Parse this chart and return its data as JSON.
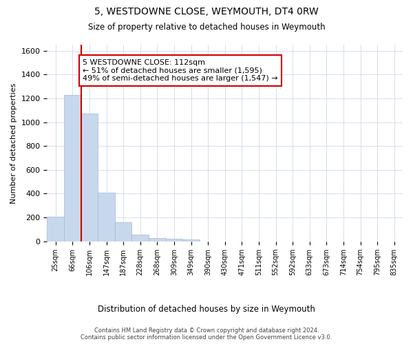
{
  "title": "5, WESTDOWNE CLOSE, WEYMOUTH, DT4 0RW",
  "subtitle": "Size of property relative to detached houses in Weymouth",
  "xlabel": "Distribution of detached houses by size in Weymouth",
  "ylabel": "Number of detached properties",
  "bar_color": "#c8d8ec",
  "bar_edge_color": "#a0b8d8",
  "grid_color": "#d0d8e8",
  "background_color": "#ffffff",
  "categories": [
    "25sqm",
    "66sqm",
    "106sqm",
    "147sqm",
    "187sqm",
    "228sqm",
    "268sqm",
    "309sqm",
    "349sqm",
    "390sqm",
    "430sqm",
    "471sqm",
    "511sqm",
    "552sqm",
    "592sqm",
    "633sqm",
    "673sqm",
    "714sqm",
    "754sqm",
    "795sqm",
    "835sqm"
  ],
  "values": [
    205,
    1230,
    1075,
    410,
    160,
    55,
    30,
    20,
    15,
    0,
    0,
    0,
    0,
    0,
    0,
    0,
    0,
    0,
    0,
    0,
    0
  ],
  "ylim": [
    0,
    1650
  ],
  "yticks": [
    0,
    200,
    400,
    600,
    800,
    1000,
    1200,
    1400,
    1600
  ],
  "property_line_index": 2,
  "property_line_color": "#cc0000",
  "annotation_text": "5 WESTDOWNE CLOSE: 112sqm\n← 51% of detached houses are smaller (1,595)\n49% of semi-detached houses are larger (1,547) →",
  "annotation_box_color": "#ffffff",
  "annotation_box_edge": "#cc0000",
  "footer": "Contains HM Land Registry data © Crown copyright and database right 2024.\nContains public sector information licensed under the Open Government Licence v3.0.",
  "figsize": [
    6.0,
    5.0
  ],
  "dpi": 100
}
